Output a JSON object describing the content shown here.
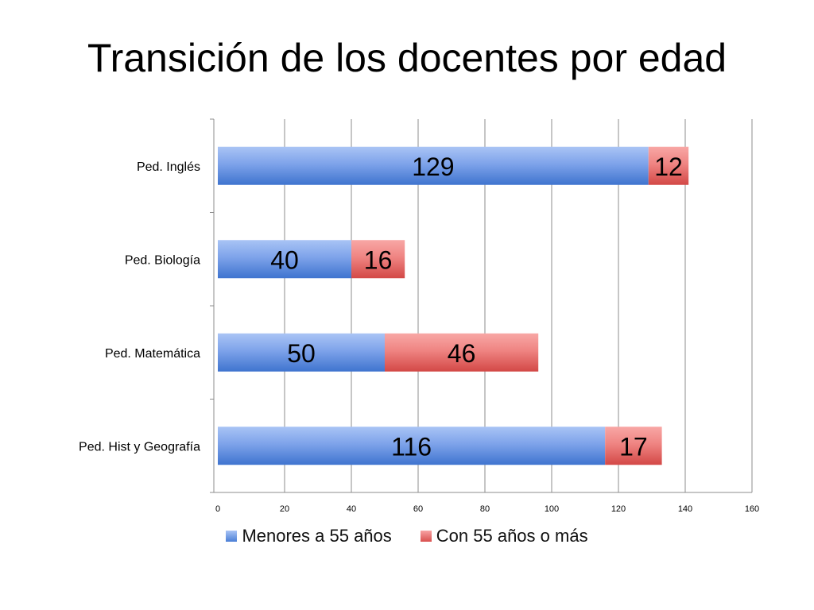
{
  "slide": {
    "title": "Transición de los docentes por edad"
  },
  "chart_data": {
    "type": "bar",
    "orientation": "horizontal",
    "stacked": true,
    "categories": [
      "Ped. Inglés",
      "Ped. Biología",
      "Ped. Matemática",
      "Ped. Hist y Geografía"
    ],
    "series": [
      {
        "name": "Menores a 55 años",
        "values": [
          129,
          40,
          50,
          116
        ],
        "color": "#4a7fd6"
      },
      {
        "name": "Con 55 años o más",
        "values": [
          12,
          16,
          46,
          17
        ],
        "color": "#d9504e"
      }
    ],
    "xlim": [
      0,
      160
    ],
    "xticks": [
      0,
      20,
      40,
      60,
      80,
      100,
      120,
      140,
      160
    ],
    "grid": true,
    "data_labels": true,
    "legend_position": "bottom"
  }
}
